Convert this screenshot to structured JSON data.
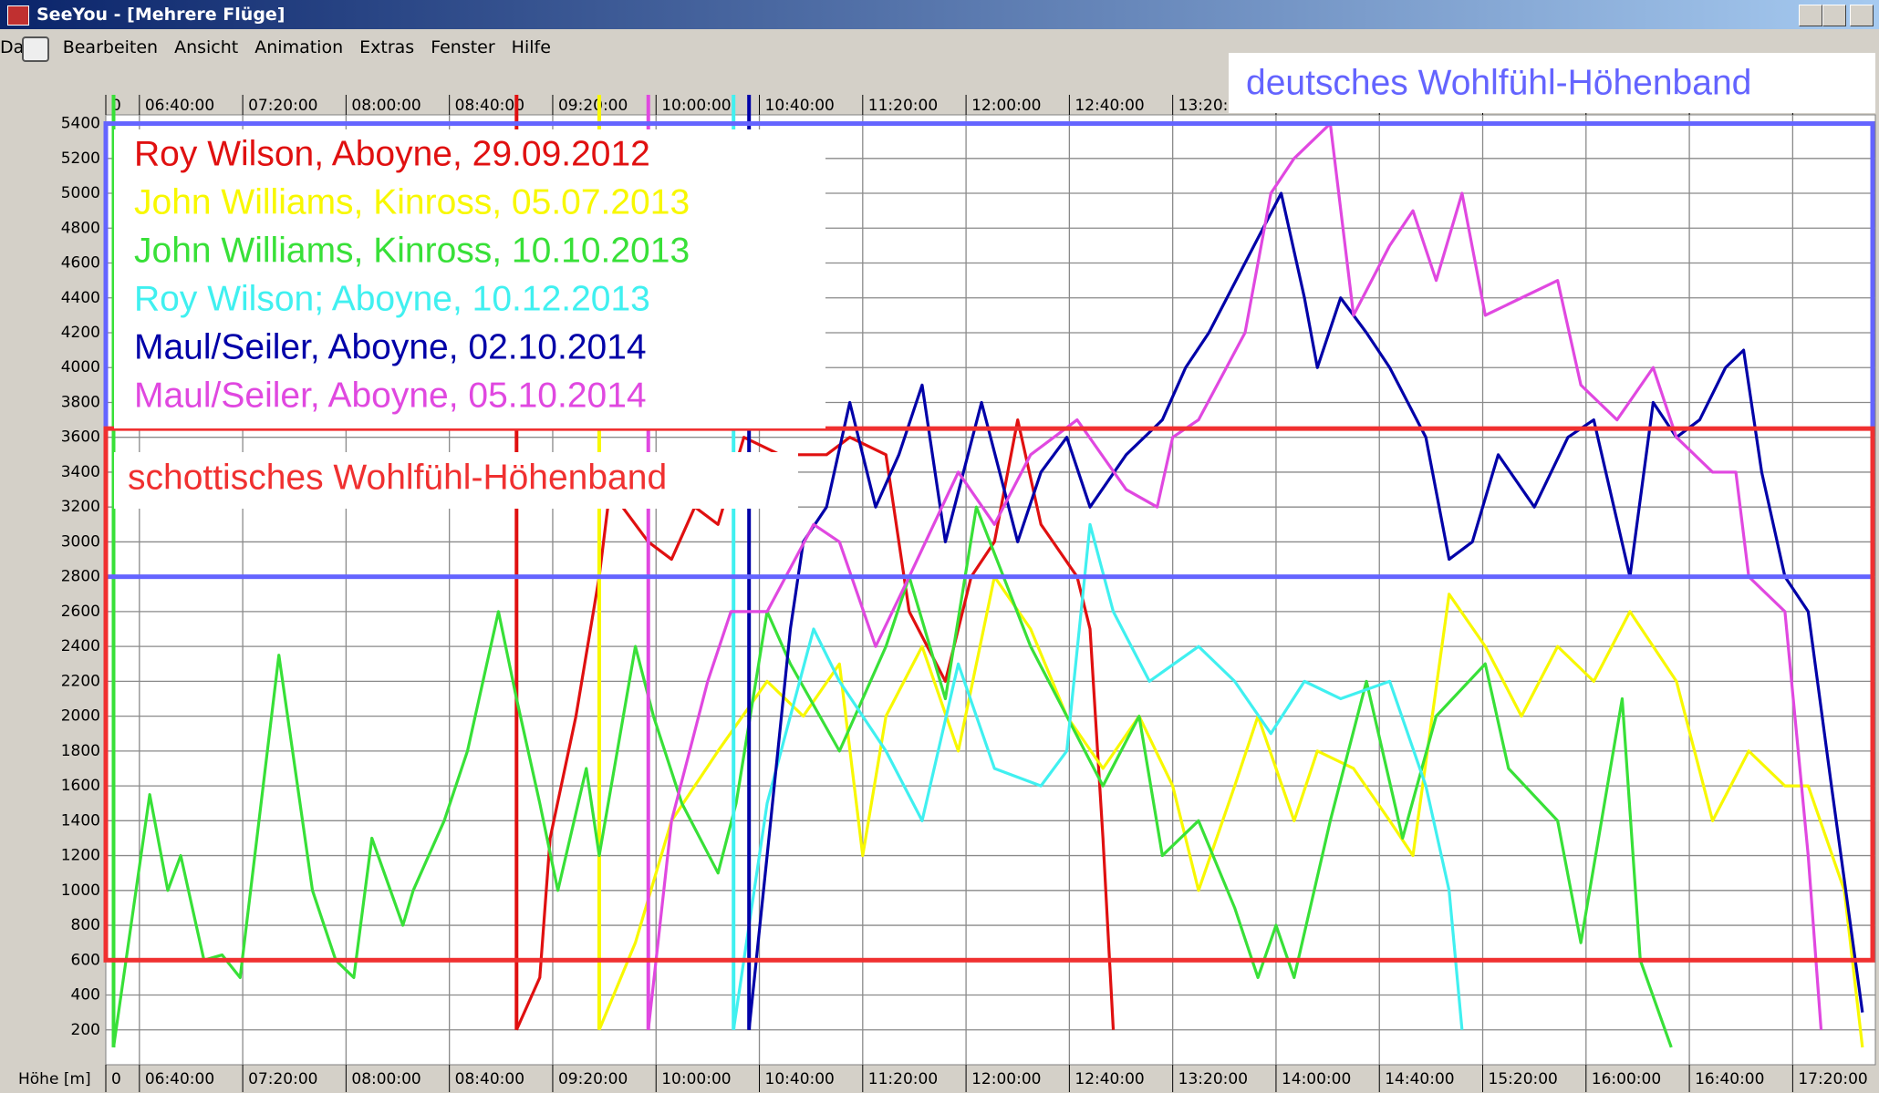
{
  "window": {
    "title": "SeeYou - [Mehrere Flüge]",
    "menu": [
      "Datei",
      "Bearbeiten",
      "Ansicht",
      "Animation",
      "Extras",
      "Fenster",
      "Hilfe"
    ]
  },
  "chart_data": {
    "type": "line",
    "y_label": "Höhe [m]",
    "xlim": [
      387,
      1072
    ],
    "ylim": [
      0,
      5450
    ],
    "xticks": [
      {
        "value": 387,
        "label": "0"
      },
      {
        "value": 400,
        "label": "06:40:00"
      },
      {
        "value": 440,
        "label": "07:20:00"
      },
      {
        "value": 480,
        "label": "08:00:00"
      },
      {
        "value": 520,
        "label": "08:40:00"
      },
      {
        "value": 560,
        "label": "09:20:00"
      },
      {
        "value": 600,
        "label": "10:00:00"
      },
      {
        "value": 640,
        "label": "10:40:00"
      },
      {
        "value": 680,
        "label": "11:20:00"
      },
      {
        "value": 720,
        "label": "12:00:00"
      },
      {
        "value": 760,
        "label": "12:40:00"
      },
      {
        "value": 800,
        "label": "13:20:00"
      },
      {
        "value": 840,
        "label": "14:00:00"
      },
      {
        "value": 880,
        "label": "14:40:00"
      },
      {
        "value": 920,
        "label": "15:20:00"
      },
      {
        "value": 960,
        "label": "16:00:00"
      },
      {
        "value": 1000,
        "label": "16:40:00"
      },
      {
        "value": 1040,
        "label": "17:20:00"
      }
    ],
    "yticks": [
      200,
      400,
      600,
      800,
      1000,
      1200,
      1400,
      1600,
      1800,
      2000,
      2200,
      2400,
      2600,
      2800,
      3000,
      3200,
      3400,
      3600,
      3800,
      4000,
      4200,
      4400,
      4600,
      4800,
      5000,
      5200,
      5400
    ],
    "grid": true,
    "bands": [
      {
        "label": "deutsches Wohlfühl-Höhenband",
        "low": 2800,
        "high": 5400,
        "color": "#6464ff"
      },
      {
        "label": "schottisches Wohlfühl-Höhenband",
        "low": 600,
        "high": 3650,
        "color": "#f03030"
      }
    ],
    "series": [
      {
        "name": "Roy Wilson, Aboyne, 29.09.2012",
        "color": "#e01010",
        "x": [
          546,
          555,
          559,
          569,
          578,
          583,
          587,
          597,
          606,
          615,
          624,
          634,
          648,
          666,
          675,
          689,
          698,
          712,
          722,
          731,
          740,
          749,
          763,
          768,
          773,
          777
        ],
        "values": [
          200,
          500,
          1300,
          2000,
          2800,
          3400,
          3200,
          3000,
          2900,
          3200,
          3100,
          3600,
          3500,
          3500,
          3600,
          3500,
          2600,
          2200,
          2800,
          3000,
          3700,
          3100,
          2800,
          2500,
          1300,
          200
        ]
      },
      {
        "name": "John Williams, Kinross, 05.07.2013",
        "color": "#f8f800",
        "x": [
          578,
          592,
          606,
          624,
          643,
          657,
          671,
          680,
          689,
          703,
          717,
          731,
          745,
          759,
          773,
          787,
          800,
          810,
          824,
          833,
          847,
          856,
          870,
          884,
          893,
          907,
          921,
          935,
          949,
          963,
          977,
          995,
          1009,
          1023,
          1037,
          1046,
          1060,
          1067
        ],
        "values": [
          200,
          700,
          1400,
          1800,
          2200,
          2000,
          2300,
          1200,
          2000,
          2400,
          1800,
          2800,
          2500,
          2000,
          1700,
          2000,
          1600,
          1000,
          1600,
          2000,
          1400,
          1800,
          1700,
          1400,
          1200,
          2700,
          2400,
          2000,
          2400,
          2200,
          2600,
          2200,
          1400,
          1800,
          1600,
          1600,
          1000,
          100
        ]
      },
      {
        "name": "John Williams, Kinross, 10.10.2013",
        "color": "#38e038",
        "x": [
          390,
          404,
          411,
          416,
          425,
          432,
          439,
          454,
          467,
          476,
          483,
          490,
          502,
          506,
          518,
          527,
          539,
          546,
          555,
          562,
          573,
          578,
          592,
          599,
          610,
          624,
          631,
          643,
          652,
          671,
          689,
          698,
          712,
          724,
          745,
          773,
          787,
          796,
          810,
          824,
          833,
          840,
          847,
          861,
          875,
          889,
          902,
          921,
          930,
          949,
          958,
          974,
          981,
          993
        ],
        "values": [
          100,
          1550,
          1000,
          1200,
          600,
          630,
          500,
          2350,
          1000,
          600,
          500,
          1300,
          800,
          1000,
          1400,
          1800,
          2600,
          2100,
          1500,
          1000,
          1700,
          1200,
          2400,
          2000,
          1500,
          1100,
          1500,
          2600,
          2300,
          1800,
          2400,
          2800,
          2100,
          3200,
          2400,
          1600,
          2000,
          1200,
          1400,
          900,
          500,
          800,
          500,
          1400,
          2200,
          1300,
          2000,
          2300,
          1700,
          1400,
          700,
          2100,
          600,
          100
        ]
      },
      {
        "name": "Roy Wilson; Aboyne, 10.12.2013",
        "color": "#40f0f0",
        "x": [
          630,
          643,
          661,
          671,
          689,
          703,
          717,
          731,
          749,
          759,
          768,
          777,
          791,
          810,
          824,
          838,
          851,
          865,
          884,
          898,
          907,
          912
        ],
        "values": [
          200,
          1500,
          2500,
          2200,
          1800,
          1400,
          2300,
          1700,
          1600,
          1800,
          3100,
          2600,
          2200,
          2400,
          2200,
          1900,
          2200,
          2100,
          2200,
          1600,
          1000,
          200
        ]
      },
      {
        "name": "Maul/Seiler, Aboyne, 02.10.2014",
        "color": "#0000a8",
        "x": [
          636,
          643,
          652,
          657,
          666,
          675,
          685,
          694,
          703,
          712,
          726,
          740,
          749,
          759,
          768,
          782,
          796,
          805,
          814,
          828,
          842,
          851,
          856,
          865,
          875,
          884,
          898,
          907,
          916,
          926,
          940,
          953,
          963,
          977,
          986,
          995,
          1004,
          1014,
          1021,
          1028,
          1037,
          1046,
          1055,
          1067
        ],
        "values": [
          200,
          1200,
          2500,
          3000,
          3200,
          3800,
          3200,
          3500,
          3900,
          3000,
          3800,
          3000,
          3400,
          3600,
          3200,
          3500,
          3700,
          4000,
          4200,
          4600,
          5000,
          4400,
          4000,
          4400,
          4200,
          4000,
          3600,
          2900,
          3000,
          3500,
          3200,
          3600,
          3700,
          2800,
          3800,
          3600,
          3700,
          4000,
          4100,
          3400,
          2800,
          2600,
          1600,
          300
        ]
      },
      {
        "name": "Maul/Seiler, Aboyne, 05.10.2014",
        "color": "#e048e0",
        "x": [
          597,
          606,
          620,
          629,
          643,
          661,
          671,
          685,
          698,
          717,
          731,
          745,
          763,
          782,
          794,
          800,
          810,
          828,
          838,
          847,
          861,
          870,
          884,
          893,
          902,
          912,
          921,
          935,
          949,
          958,
          972,
          986,
          995,
          1009,
          1018,
          1023,
          1037,
          1046,
          1051
        ],
        "values": [
          200,
          1400,
          2200,
          2600,
          2600,
          3100,
          3000,
          2400,
          2800,
          3400,
          3100,
          3500,
          3700,
          3300,
          3200,
          3600,
          3700,
          4200,
          5000,
          5200,
          5400,
          4300,
          4700,
          4900,
          4500,
          5000,
          4300,
          4400,
          4500,
          3900,
          3700,
          4000,
          3600,
          3400,
          3400,
          2800,
          2600,
          1200,
          200
        ]
      }
    ]
  }
}
